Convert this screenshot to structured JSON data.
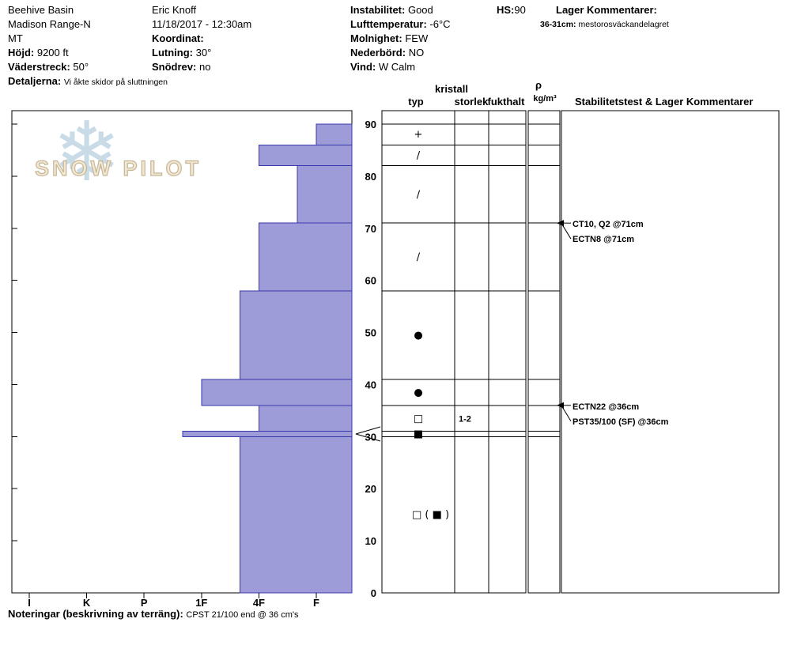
{
  "header": {
    "col1": {
      "site": "Beehive Basin",
      "range": "Madison Range-N",
      "state": "MT",
      "elevation_label": "Höjd:",
      "elevation_value": "9200 ft",
      "aspect_label": "Väderstreck:",
      "aspect_value": "50°",
      "details_label": "Detaljerna:",
      "details_value": "Vi åkte skidor på sluttningen"
    },
    "col2": {
      "observer": "Eric Knoff",
      "datetime": "11/18/2017 - 12:30am",
      "coordinate_label": "Koordinat:",
      "slope_label": "Lutning:",
      "slope_value": "30°",
      "drift_label": "Snödrev:",
      "drift_value": "no"
    },
    "col3": {
      "instability_label": "Instabilitet:",
      "instability_value": "Good",
      "airtemp_label": "Lufttemperatur:",
      "airtemp_value": "-6°C",
      "sky_label": "Molnighet:",
      "sky_value": "FEW",
      "precip_label": "Nederbörd:",
      "precip_value": "NO",
      "wind_label": "Vind:",
      "wind_value": "W Calm"
    },
    "hs_label": "HS:",
    "hs_value": "90",
    "col5": {
      "layer_comments_label": "Lager Kommentarer:",
      "comment_depth": "36-31cm:",
      "comment_text": "mestorosväckandelagret"
    }
  },
  "logo": {
    "snowflake": "❄",
    "text": "SNOW PILOT"
  },
  "footer": {
    "label": "Noteringar (beskrivning av terräng):",
    "value": "CPST 21/100 end @ 36 cm's"
  },
  "chart_data": {
    "type": "bar",
    "subtype": "snow-profile-hardness",
    "orientation": "horizontal",
    "grid": true,
    "legend_position": "none",
    "depth_unit": "cm",
    "total_snow_height_cm": 90,
    "depth_ticks": [
      0,
      10,
      20,
      30,
      40,
      50,
      60,
      70,
      80,
      90
    ],
    "hardness_ticks": [
      "I",
      "K",
      "P",
      "1F",
      "4F",
      "F"
    ],
    "column_headers": {
      "kristall": "kristall",
      "typ": "typ",
      "storlek": "storlek",
      "fukthalt": "fukthalt",
      "rho": "ρ",
      "rho_unit": "kg/m³",
      "stability": "Stabilitetstest & Lager Kommentarer"
    },
    "layers": [
      {
        "top_cm": 90,
        "bottom_cm": 86,
        "hardness": "F",
        "hardness_index": 5.0,
        "grain_type": "PP",
        "symbol": "+",
        "grain_size": "",
        "moisture": ""
      },
      {
        "top_cm": 86,
        "bottom_cm": 82,
        "hardness": "4F",
        "hardness_index": 4.0,
        "grain_type": "DF",
        "symbol": "∕",
        "grain_size": "",
        "moisture": ""
      },
      {
        "top_cm": 82,
        "bottom_cm": 71,
        "hardness": "F-",
        "hardness_index": 4.67,
        "grain_type": "DF",
        "symbol": "∕",
        "grain_size": "",
        "moisture": ""
      },
      {
        "top_cm": 71,
        "bottom_cm": 58,
        "hardness": "4F",
        "hardness_index": 4.0,
        "grain_type": "DF",
        "symbol": "∕",
        "grain_size": "",
        "moisture": ""
      },
      {
        "top_cm": 58,
        "bottom_cm": 41,
        "hardness": "4F-",
        "hardness_index": 3.67,
        "grain_type": "RG",
        "symbol": "●",
        "grain_size": "",
        "moisture": ""
      },
      {
        "top_cm": 41,
        "bottom_cm": 36,
        "hardness": "1F",
        "hardness_index": 3.0,
        "grain_type": "RG",
        "symbol": "●",
        "grain_size": "",
        "moisture": ""
      },
      {
        "top_cm": 36,
        "bottom_cm": 31,
        "hardness": "4F",
        "hardness_index": 4.0,
        "grain_type": "FC",
        "symbol": "□",
        "grain_size": "1-2",
        "moisture": ""
      },
      {
        "top_cm": 31,
        "bottom_cm": 30,
        "hardness": "1F-",
        "hardness_index": 2.67,
        "grain_type": "IF",
        "symbol": "■",
        "grain_size": "",
        "moisture": ""
      },
      {
        "top_cm": 30,
        "bottom_cm": 0,
        "hardness": "4F-",
        "hardness_index": 3.67,
        "grain_type": "FC",
        "symbol": "□",
        "secondary_symbol": "■",
        "grain_size": "",
        "moisture": ""
      }
    ],
    "tests": [
      {
        "label": "CT10, Q2 @71cm",
        "depth_cm": 71,
        "row": 0
      },
      {
        "label": "ECTN8 @71cm",
        "depth_cm": 71,
        "row": 1
      },
      {
        "label": "ECTN22 @36cm",
        "depth_cm": 36,
        "row": 0
      },
      {
        "label": "PST35/100 (SF) @36cm",
        "depth_cm": 36,
        "row": 1
      }
    ],
    "thin_layer_callout": {
      "top_cm": 31,
      "bottom_cm": 30
    },
    "colors": {
      "bar_fill": "#9e9cd8",
      "bar_stroke": "#3939ac",
      "grid": "#000000"
    }
  }
}
